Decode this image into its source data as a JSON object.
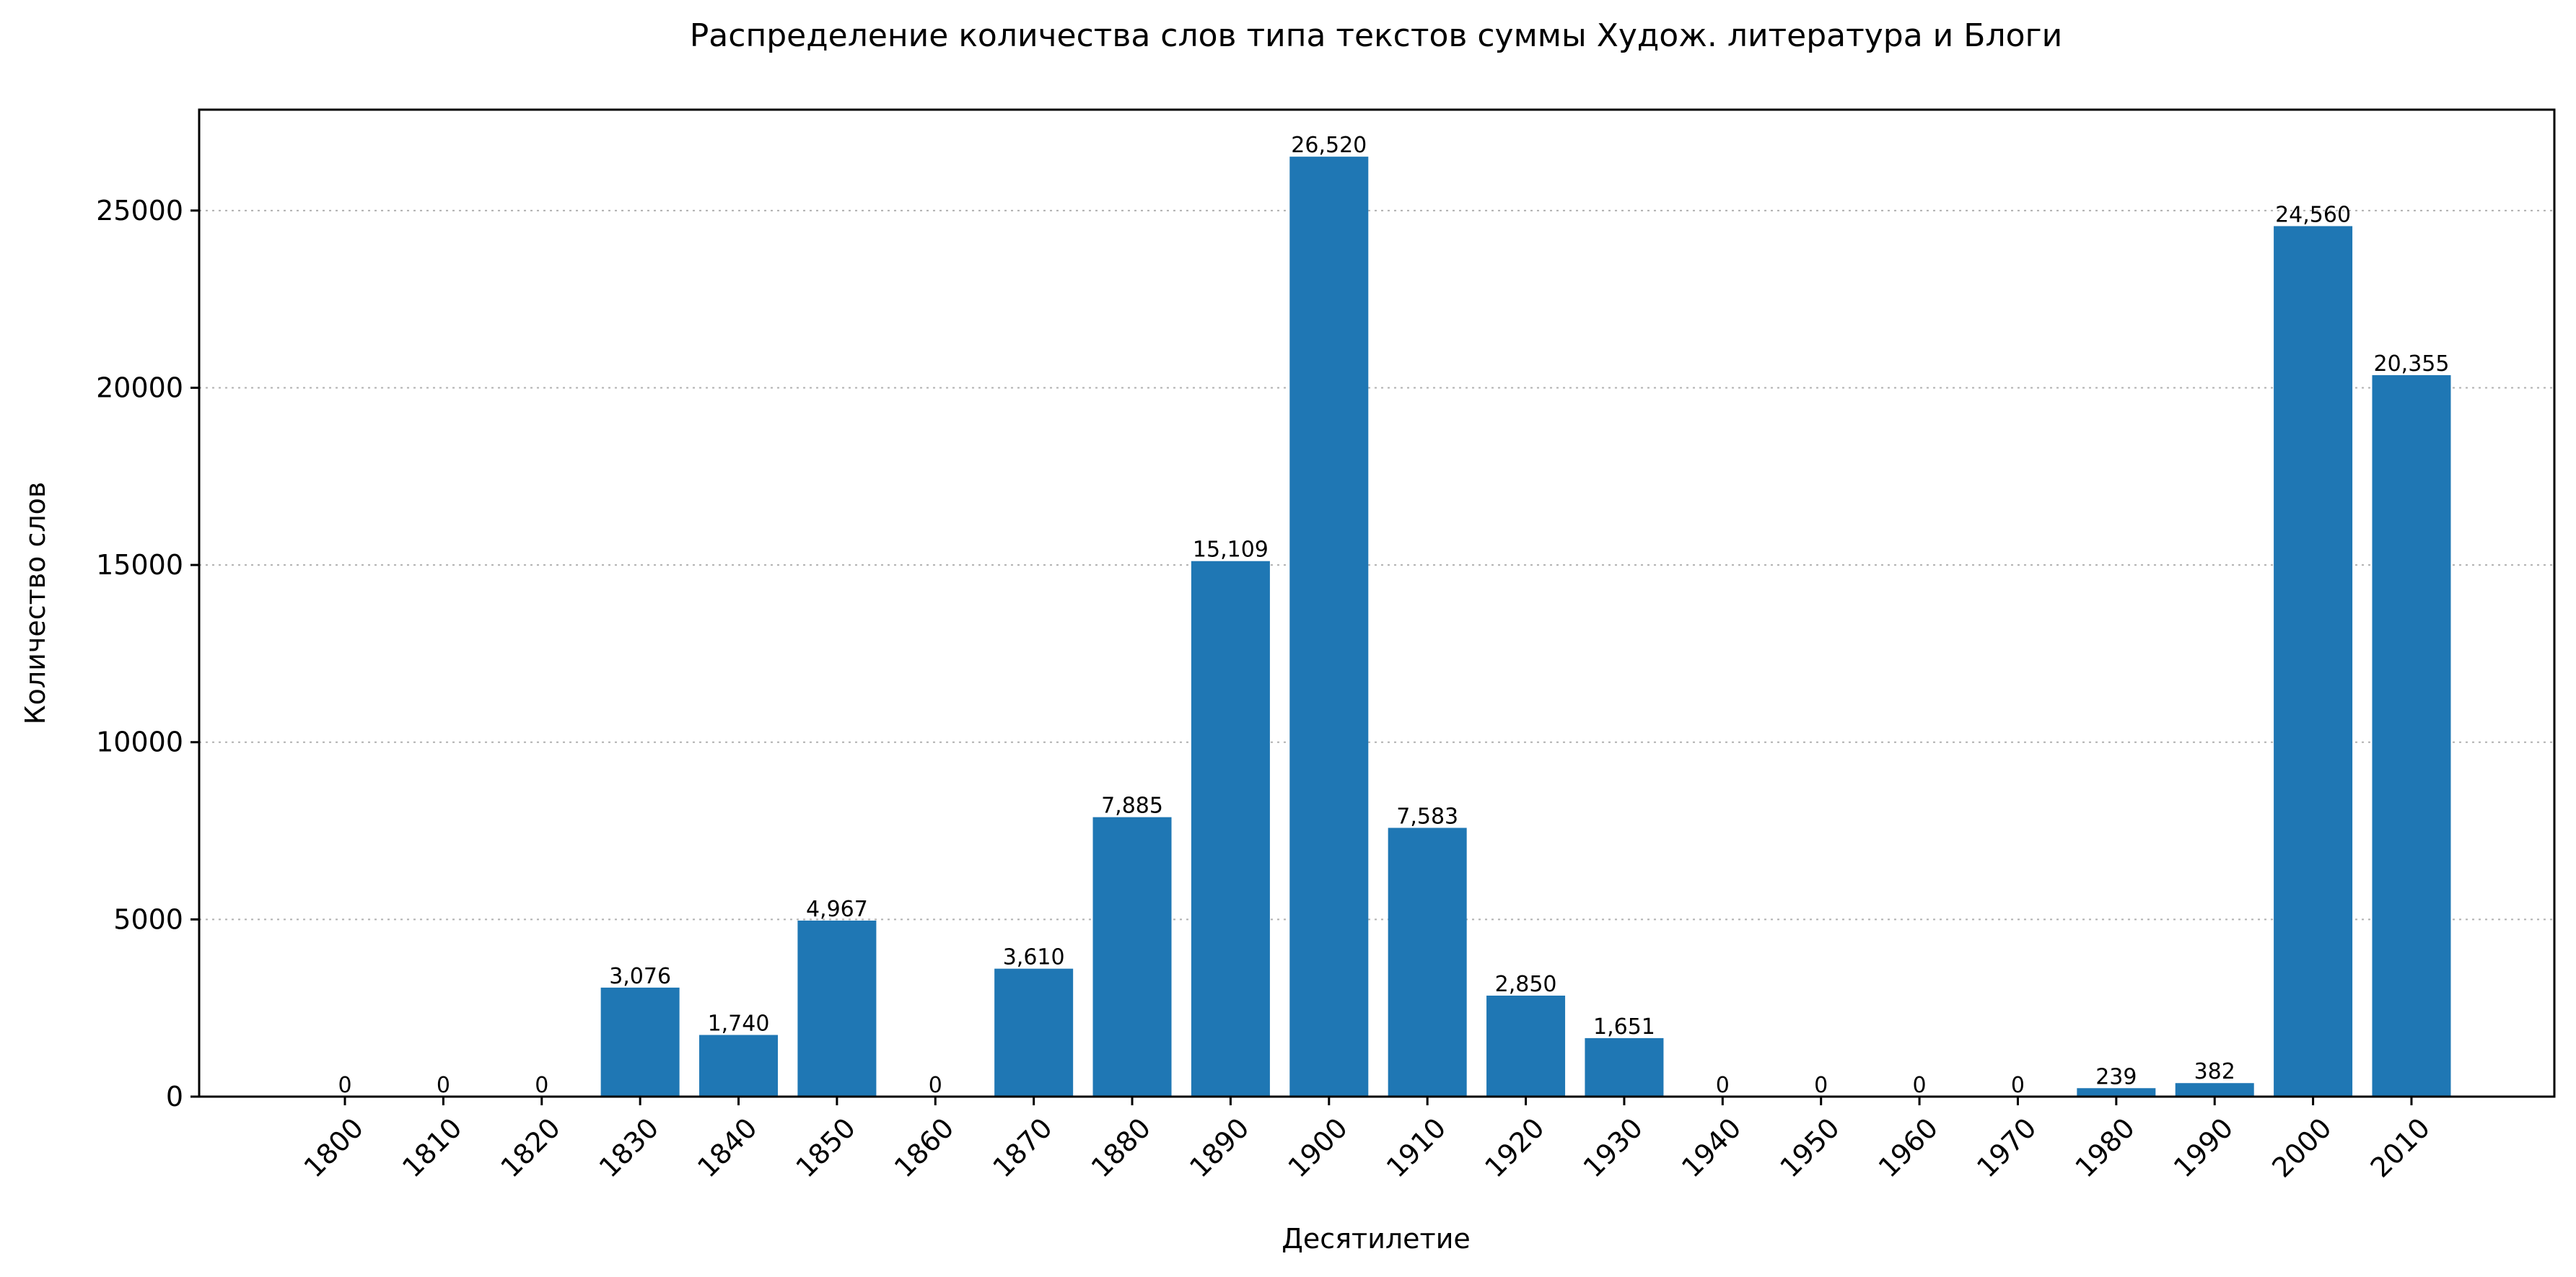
{
  "chart_data": {
    "type": "bar",
    "title": "Распределение количества слов типа текстов суммы Худож. литература и Блоги",
    "xlabel": "Десятилетие",
    "ylabel": "Количество слов",
    "categories": [
      "1800",
      "1810",
      "1820",
      "1830",
      "1840",
      "1850",
      "1860",
      "1870",
      "1880",
      "1890",
      "1900",
      "1910",
      "1920",
      "1930",
      "1940",
      "1950",
      "1960",
      "1970",
      "1980",
      "1990",
      "2000",
      "2010"
    ],
    "values": [
      0,
      0,
      0,
      3076,
      1740,
      4967,
      0,
      3610,
      7885,
      15109,
      26520,
      7583,
      2850,
      1651,
      0,
      0,
      0,
      0,
      239,
      382,
      24560,
      20355
    ],
    "data_labels": [
      "0",
      "0",
      "0",
      "3,076",
      "1,740",
      "4,967",
      "0",
      "3,610",
      "7,885",
      "15,109",
      "26,520",
      "7,583",
      "2,850",
      "1,651",
      "0",
      "0",
      "0",
      "0",
      "239",
      "382",
      "24,560",
      "20,355"
    ],
    "ylim": [
      0,
      27846
    ],
    "yticks": [
      0,
      5000,
      10000,
      15000,
      20000,
      25000
    ],
    "ytick_labels": [
      "0",
      "5000",
      "10000",
      "15000",
      "20000",
      "25000"
    ],
    "grid": "y",
    "bar_color": "#1f77b4"
  }
}
